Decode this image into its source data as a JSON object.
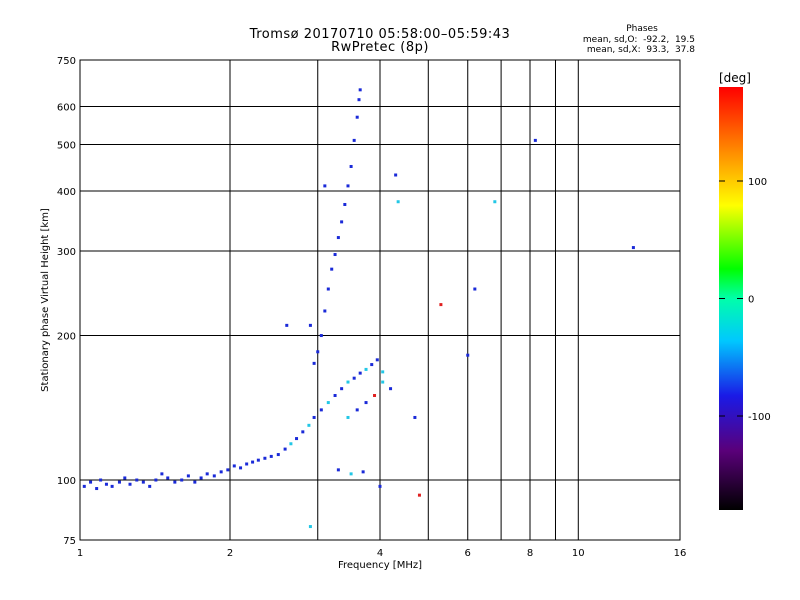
{
  "titles": {
    "line1": "Tromsø 20170710 05:58:00–05:59:43",
    "line2": "RwPretec (8p)"
  },
  "phases_box": {
    "heading": "Phases",
    "line_o": "mean, sd,O:  -92.2,  19.5",
    "line_x": "mean, sd,X:  93.3,  37.8"
  },
  "chart_data": {
    "type": "scatter",
    "xlabel": "Frequency [MHz]",
    "ylabel": "Stationary phase Virtual Height [km]",
    "x_scale": "log",
    "y_scale": "log",
    "xlim": [
      1,
      16
    ],
    "ylim": [
      75,
      750
    ],
    "x_ticks": [
      1,
      2,
      4,
      6,
      8,
      10,
      16
    ],
    "x_tick_labels": [
      "1",
      "2",
      "4",
      "6",
      "8",
      "10",
      "16"
    ],
    "x_minor_ticks": [
      3,
      5,
      7,
      9
    ],
    "y_ticks": [
      75,
      100,
      200,
      300,
      400,
      500,
      600,
      750
    ],
    "y_tick_labels": [
      "75",
      "100",
      "200",
      "300",
      "400",
      "500",
      "600",
      "750"
    ],
    "grid": true,
    "colorbar": {
      "label": "[deg]",
      "range": [
        -180,
        180
      ],
      "ticks": [
        100,
        0,
        -100
      ],
      "tick_labels": [
        "100",
        "0",
        "-100"
      ]
    },
    "series": [
      {
        "points": [
          {
            "f": 1.02,
            "h": 97
          },
          {
            "f": 1.05,
            "h": 99
          },
          {
            "f": 1.08,
            "h": 96
          },
          {
            "f": 1.1,
            "h": 100
          },
          {
            "f": 1.13,
            "h": 98
          },
          {
            "f": 1.16,
            "h": 97
          },
          {
            "f": 1.2,
            "h": 99
          },
          {
            "f": 1.23,
            "h": 101
          },
          {
            "f": 1.26,
            "h": 98
          },
          {
            "f": 1.3,
            "h": 100
          },
          {
            "f": 1.34,
            "h": 99
          },
          {
            "f": 1.38,
            "h": 97
          },
          {
            "f": 1.42,
            "h": 100
          },
          {
            "f": 1.46,
            "h": 103
          },
          {
            "f": 1.5,
            "h": 101
          },
          {
            "f": 1.55,
            "h": 99
          },
          {
            "f": 1.6,
            "h": 100
          },
          {
            "f": 1.65,
            "h": 102
          },
          {
            "f": 1.7,
            "h": 99
          },
          {
            "f": 1.75,
            "h": 101
          },
          {
            "f": 1.8,
            "h": 103
          },
          {
            "f": 1.86,
            "h": 102
          },
          {
            "f": 1.92,
            "h": 104
          },
          {
            "f": 1.98,
            "h": 105
          },
          {
            "f": 2.04,
            "h": 107
          },
          {
            "f": 2.1,
            "h": 106
          },
          {
            "f": 2.16,
            "h": 108
          },
          {
            "f": 2.22,
            "h": 109
          },
          {
            "f": 2.28,
            "h": 110
          },
          {
            "f": 2.35,
            "h": 111
          },
          {
            "f": 2.42,
            "h": 112
          },
          {
            "f": 2.5,
            "h": 113
          },
          {
            "f": 2.58,
            "h": 116
          },
          {
            "f": 2.65,
            "h": 119
          },
          {
            "f": 2.72,
            "h": 122
          },
          {
            "f": 2.8,
            "h": 126
          },
          {
            "f": 2.88,
            "h": 130
          },
          {
            "f": 2.95,
            "h": 135
          },
          {
            "f": 3.05,
            "h": 140
          },
          {
            "f": 3.15,
            "h": 145
          },
          {
            "f": 3.25,
            "h": 150
          },
          {
            "f": 3.35,
            "h": 155
          },
          {
            "f": 3.45,
            "h": 160
          },
          {
            "f": 3.55,
            "h": 163
          },
          {
            "f": 3.65,
            "h": 167
          },
          {
            "f": 3.75,
            "h": 170
          },
          {
            "f": 3.85,
            "h": 174
          },
          {
            "f": 3.95,
            "h": 178
          },
          {
            "f": 4.05,
            "h": 168
          }
        ]
      },
      {
        "points": [
          {
            "f": 2.95,
            "h": 175
          },
          {
            "f": 3.0,
            "h": 185
          },
          {
            "f": 3.05,
            "h": 200
          },
          {
            "f": 3.1,
            "h": 225
          },
          {
            "f": 3.15,
            "h": 250
          },
          {
            "f": 3.2,
            "h": 275
          },
          {
            "f": 3.25,
            "h": 295
          },
          {
            "f": 3.3,
            "h": 320
          },
          {
            "f": 3.35,
            "h": 345
          },
          {
            "f": 3.4,
            "h": 375
          },
          {
            "f": 3.45,
            "h": 410
          },
          {
            "f": 3.5,
            "h": 450
          },
          {
            "f": 3.55,
            "h": 510
          },
          {
            "f": 3.6,
            "h": 570
          },
          {
            "f": 3.63,
            "h": 620
          },
          {
            "f": 3.65,
            "h": 650
          }
        ]
      }
    ],
    "scatter_extras": [
      {
        "f": 3.45,
        "h": 135
      },
      {
        "f": 3.6,
        "h": 140
      },
      {
        "f": 3.75,
        "h": 145
      },
      {
        "f": 3.9,
        "h": 150
      },
      {
        "f": 4.05,
        "h": 160
      },
      {
        "f": 4.2,
        "h": 155
      },
      {
        "f": 4.7,
        "h": 135
      },
      {
        "f": 3.3,
        "h": 105
      },
      {
        "f": 3.5,
        "h": 103
      },
      {
        "f": 3.7,
        "h": 104
      },
      {
        "f": 4.8,
        "h": 93
      },
      {
        "f": 6.2,
        "h": 250
      },
      {
        "f": 6.8,
        "h": 380
      },
      {
        "f": 8.2,
        "h": 510
      },
      {
        "f": 12.9,
        "h": 305
      },
      {
        "f": 4.3,
        "h": 432
      },
      {
        "f": 4.35,
        "h": 380
      },
      {
        "f": 5.3,
        "h": 232
      },
      {
        "f": 6.0,
        "h": 182
      },
      {
        "f": 2.6,
        "h": 210
      },
      {
        "f": 2.9,
        "h": 80
      },
      {
        "f": 2.9,
        "h": 210
      },
      {
        "f": 3.1,
        "h": 410
      },
      {
        "f": 4.0,
        "h": 97
      }
    ],
    "colors": {
      "dominant_O": "#1a2ad8",
      "X_band": "#22c7e6",
      "accent": "#e02020"
    }
  }
}
